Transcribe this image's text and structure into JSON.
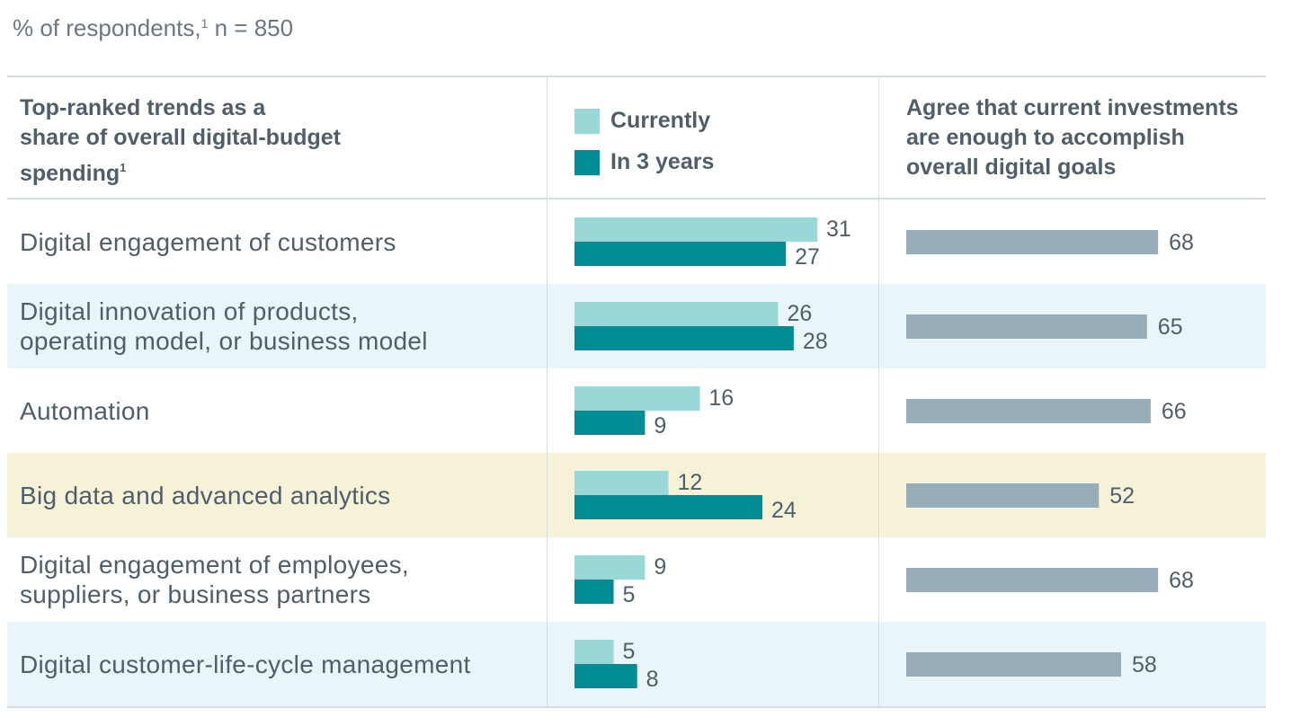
{
  "subtitle": {
    "text": "% of respondents,",
    "footnote": "1",
    "suffix": " n = 850"
  },
  "headers": {
    "trends_line1": "Top-ranked trends as a",
    "trends_line2": "share of overall digital-budget",
    "trends_line3": "spending",
    "trends_footnote": "1",
    "agree_line1": "Agree that current investments",
    "agree_line2": "are enough to accomplish",
    "agree_line3": "overall digital goals"
  },
  "legend": {
    "currently": "Currently",
    "in3years": "In 3 years"
  },
  "colors": {
    "currently": "#9ad8d8",
    "in3years": "#008d96",
    "agree": "#97adb8",
    "row_alt": "#e9f5f8",
    "row_highlight": "#f6f2d8",
    "rule": "#d4dde3",
    "text": "#4f5e6b"
  },
  "rows": [
    {
      "label_lines": [
        "Digital engagement of customers"
      ],
      "background": "white"
    },
    {
      "label_lines": [
        "Digital innovation of products,",
        "operating model, or business model"
      ],
      "background": "alt"
    },
    {
      "label_lines": [
        "Automation"
      ],
      "background": "white"
    },
    {
      "label_lines": [
        "Big data and advanced analytics"
      ],
      "background": "highlight"
    },
    {
      "label_lines": [
        "Digital engagement of employees,",
        "suppliers, or business partners"
      ],
      "background": "white"
    },
    {
      "label_lines": [
        "Digital customer-life-cycle management"
      ],
      "background": "alt"
    }
  ],
  "chart_data": [
    {
      "type": "bar",
      "orientation": "horizontal",
      "categories": [
        "Digital engagement of customers",
        "Digital innovation of products, operating model, or business model",
        "Automation",
        "Big data and advanced analytics",
        "Digital engagement of employees, suppliers, or business partners",
        "Digital customer-life-cycle management"
      ],
      "series": [
        {
          "name": "Currently",
          "values": [
            31,
            26,
            16,
            12,
            9,
            5
          ]
        },
        {
          "name": "In 3 years",
          "values": [
            27,
            28,
            9,
            24,
            5,
            8
          ]
        }
      ],
      "title": "",
      "xlabel": "",
      "ylabel": "",
      "grid": false,
      "legend": "top"
    },
    {
      "type": "bar",
      "orientation": "horizontal",
      "categories": [
        "Digital engagement of customers",
        "Digital innovation of products, operating model, or business model",
        "Automation",
        "Big data and advanced analytics",
        "Digital engagement of employees, suppliers, or business partners",
        "Digital customer-life-cycle management"
      ],
      "series": [
        {
          "name": "",
          "values": [
            68,
            65,
            66,
            52,
            68,
            58
          ]
        }
      ],
      "title": "",
      "xlabel": "",
      "ylabel": "",
      "grid": false
    }
  ]
}
